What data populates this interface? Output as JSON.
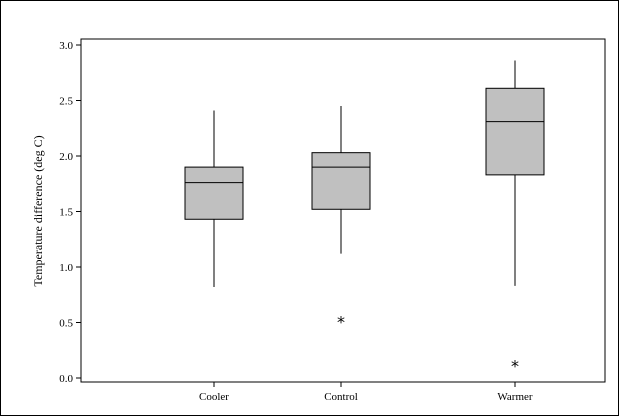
{
  "chart_data": {
    "type": "box",
    "title": "",
    "xlabel": "",
    "ylabel": "Temperature difference (deg C)",
    "ylim": [
      0.0,
      3.0
    ],
    "yticks": [
      "0.0",
      "0.5",
      "1.0",
      "1.5",
      "2.0",
      "2.5",
      "3.0"
    ],
    "categories": [
      "Cooler",
      "Control",
      "Warmer"
    ],
    "boxes": [
      {
        "category": "Cooler",
        "whisker_low": 0.82,
        "q1": 1.43,
        "median": 1.76,
        "q3": 1.9,
        "whisker_high": 2.41,
        "outliers": []
      },
      {
        "category": "Control",
        "whisker_low": 1.12,
        "q1": 1.52,
        "median": 1.9,
        "q3": 2.03,
        "whisker_high": 2.45,
        "outliers": [
          0.52
        ]
      },
      {
        "category": "Warmer",
        "whisker_low": 0.83,
        "q1": 1.83,
        "median": 2.31,
        "q3": 2.61,
        "whisker_high": 2.86,
        "outliers": [
          0.12
        ]
      }
    ],
    "outlier_marker": "*",
    "grid": false,
    "colors": {
      "box_fill": "#c0c0c0",
      "stroke": "#000000",
      "background": "#ffffff"
    }
  }
}
